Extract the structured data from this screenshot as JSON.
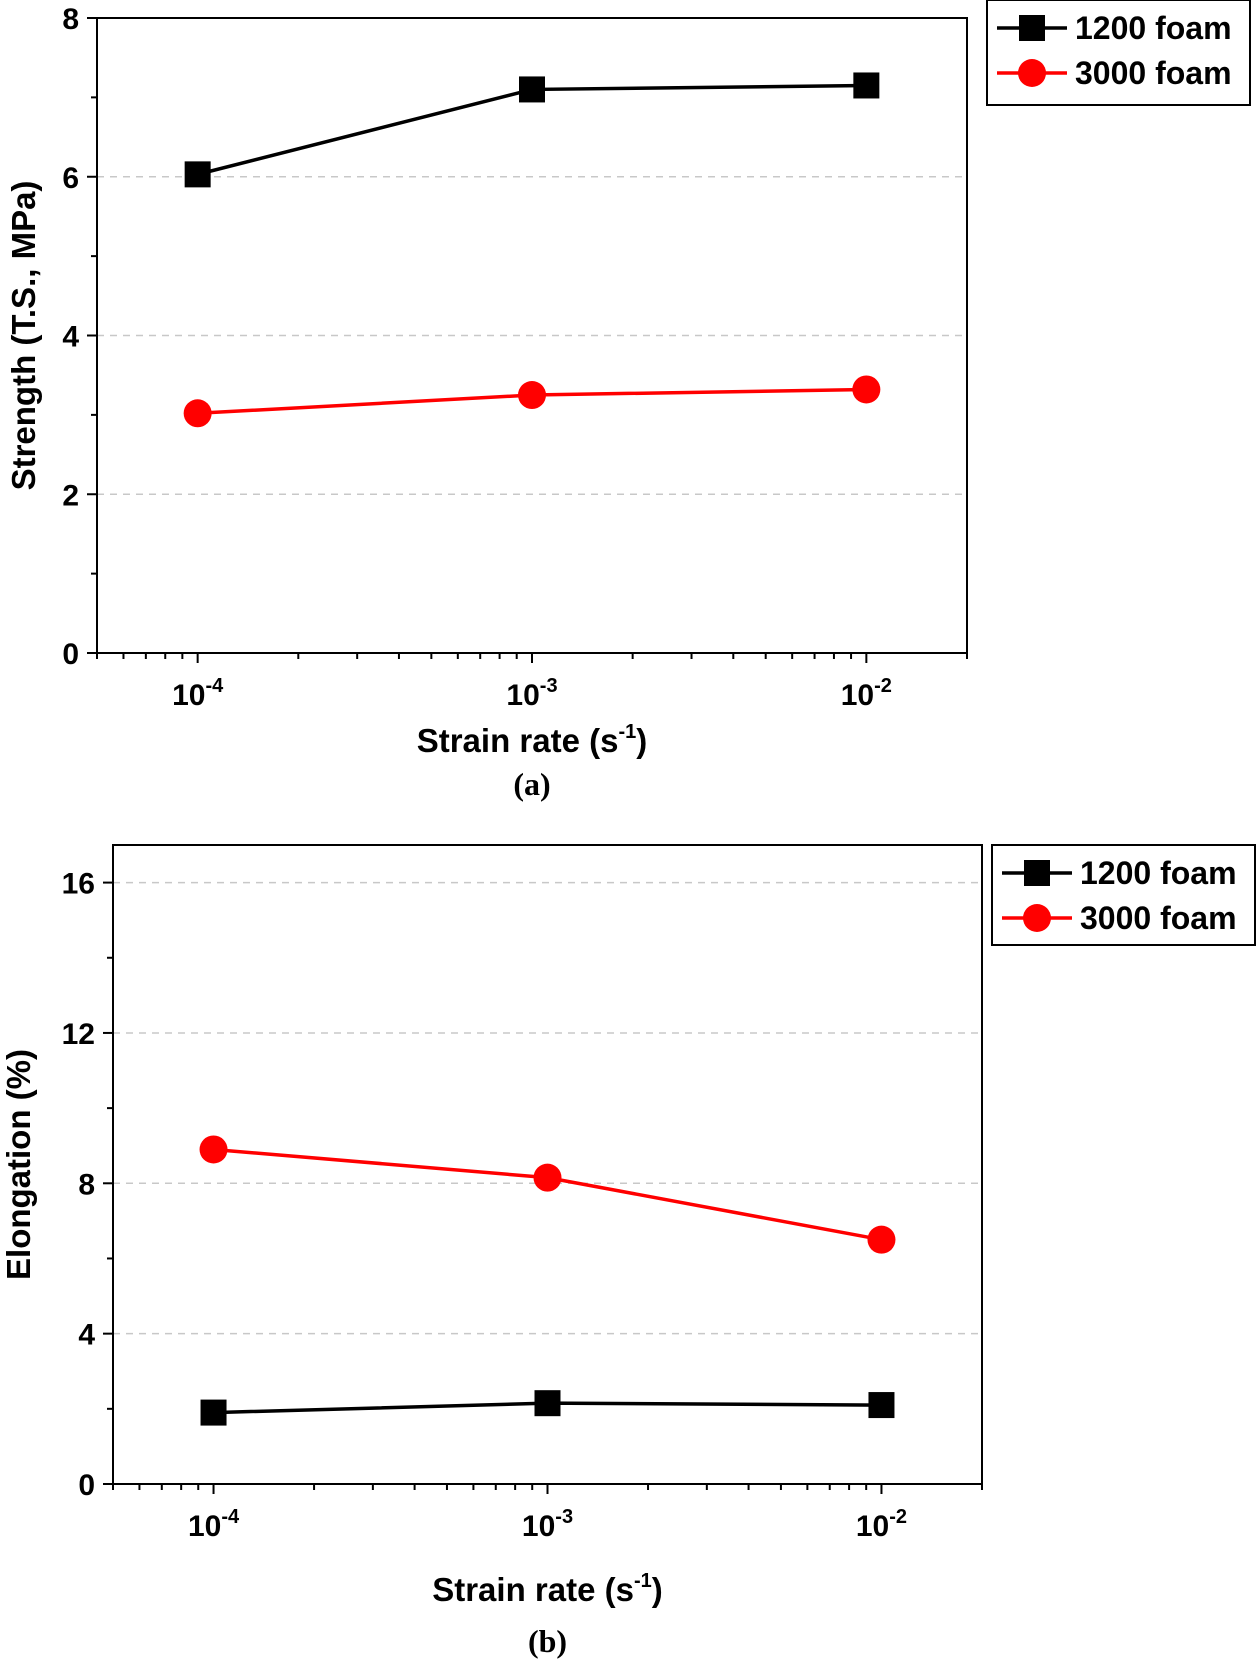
{
  "chart_data": [
    {
      "type": "line",
      "panel_caption": "(a)",
      "xlabel": "Strain rate (s",
      "xlabel_sup": "-1",
      "xlabel_close": ")",
      "ylabel": "Strength (T.S., MPa)",
      "xscale": "log",
      "xlim": [
        5e-05,
        0.02
      ],
      "ylim": [
        0,
        8
      ],
      "yticks": [
        0,
        2,
        4,
        6,
        8
      ],
      "xticks": [
        {
          "value": 0.0001,
          "base": "10",
          "exp": "-4"
        },
        {
          "value": 0.001,
          "base": "10",
          "exp": "-3"
        },
        {
          "value": 0.01,
          "base": "10",
          "exp": "-2"
        }
      ],
      "grid": "horizontal dashed",
      "legend": "outside-top-right",
      "x": [
        0.0001,
        0.001,
        0.01
      ],
      "series": [
        {
          "name": "1200 foam",
          "marker": "square",
          "color": "#000000",
          "values": [
            6.03,
            7.1,
            7.15
          ]
        },
        {
          "name": "3000 foam",
          "marker": "circle",
          "color": "#ff0000",
          "values": [
            3.02,
            3.25,
            3.32
          ]
        }
      ]
    },
    {
      "type": "line",
      "panel_caption": "(b)",
      "xlabel": "Strain rate (s",
      "xlabel_sup": "-1",
      "xlabel_close": ")",
      "ylabel": "Elongation (%)",
      "xscale": "log",
      "xlim": [
        5e-05,
        0.02
      ],
      "ylim": [
        0,
        17
      ],
      "yticks": [
        0,
        4,
        8,
        12,
        16
      ],
      "xticks": [
        {
          "value": 0.0001,
          "base": "10",
          "exp": "-4"
        },
        {
          "value": 0.001,
          "base": "10",
          "exp": "-3"
        },
        {
          "value": 0.01,
          "base": "10",
          "exp": "-2"
        }
      ],
      "grid": "horizontal dashed",
      "legend": "outside-top-right",
      "x": [
        0.0001,
        0.001,
        0.01
      ],
      "series": [
        {
          "name": "1200 foam",
          "marker": "square",
          "color": "#000000",
          "values": [
            1.9,
            2.15,
            2.1
          ]
        },
        {
          "name": "3000 foam",
          "marker": "circle",
          "color": "#ff0000",
          "values": [
            8.9,
            8.15,
            6.5
          ]
        }
      ]
    }
  ]
}
